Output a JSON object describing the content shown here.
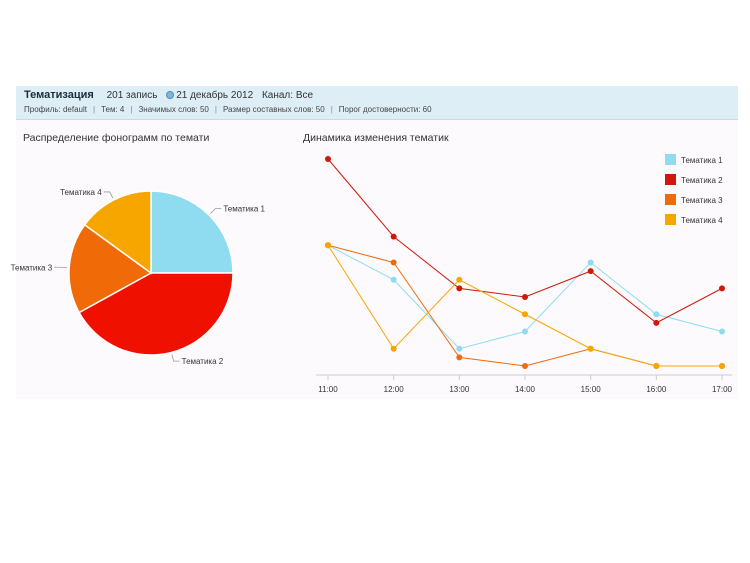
{
  "header": {
    "title": "Тематизация",
    "records": "201 запись",
    "date": "21 декабрь 2012",
    "channel": "Канал: Все",
    "params": [
      "Профиль: default",
      "Тем: 4",
      "Значимых слов: 50",
      "Размер составных слов: 50",
      "Порог достоверности: 60"
    ]
  },
  "chart_data": [
    {
      "type": "pie",
      "title": "Распределение фонограмм по темати",
      "categories": [
        "Тематика 1",
        "Тематика 2",
        "Тематика 3",
        "Тематика 4"
      ],
      "values": [
        25,
        42,
        18,
        15
      ],
      "colors": [
        "#8fdcf0",
        "#f01000",
        "#f06a08",
        "#f7a600"
      ]
    },
    {
      "type": "line",
      "title": "Динамика изменения тематик",
      "categories": [
        "11:00",
        "12:00",
        "13:00",
        "14:00",
        "15:00",
        "16:00",
        "17:00"
      ],
      "series": [
        {
          "name": "Тематика 1",
          "color": "#8fdcf0",
          "values": [
            7,
            5,
            1,
            2,
            6,
            3,
            2
          ]
        },
        {
          "name": "Тематика 2",
          "color": "#d01808",
          "values": [
            12,
            7.5,
            4.5,
            4,
            5.5,
            2.5,
            4.5
          ]
        },
        {
          "name": "Тематика 3",
          "color": "#f06a08",
          "values": [
            7,
            6,
            0.5,
            0,
            1,
            0,
            0
          ]
        },
        {
          "name": "Тематика 4",
          "color": "#f7a600",
          "values": [
            7,
            1,
            5,
            3,
            1,
            0,
            0
          ]
        }
      ],
      "ylim": [
        0,
        12
      ],
      "legend_position": "top-right",
      "grid": false
    }
  ]
}
